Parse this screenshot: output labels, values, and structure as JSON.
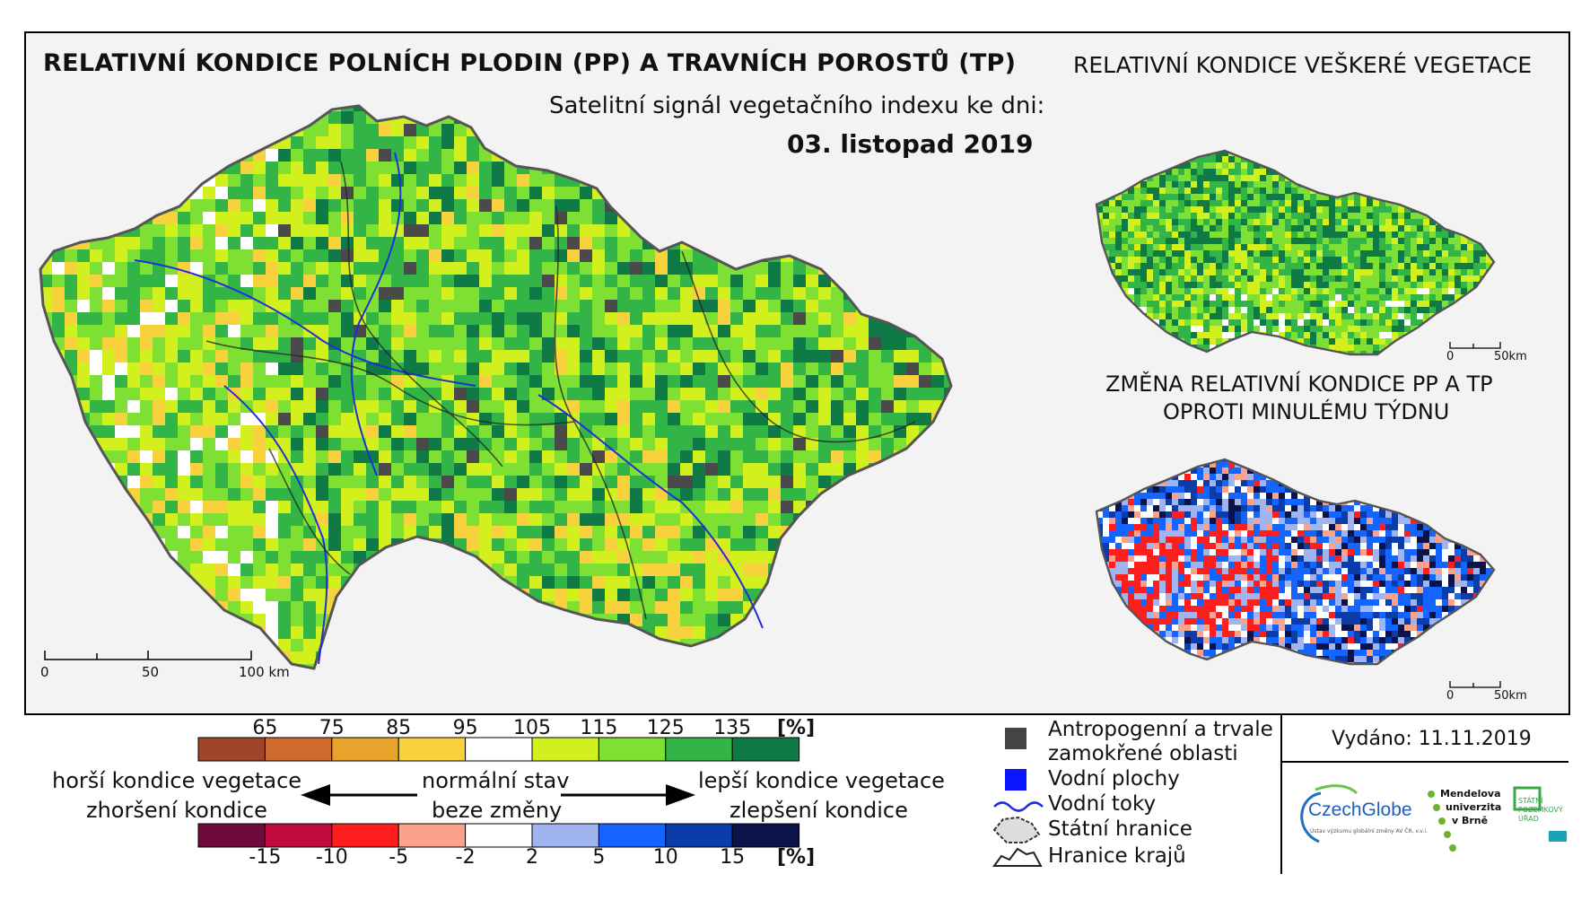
{
  "main_title": "RELATIVNÍ KONDICE POLNÍCH PLODIN (PP) A TRAVNÍCH POROSTŮ (TP)",
  "subtitle": "Satelitní signál vegetačního indexu ke dni:",
  "date": "03. listopad 2019",
  "inset_vegetation": {
    "title": "RELATIVNÍ KONDICE VEŠKERÉ VEGETACE",
    "scale": {
      "start": "0",
      "end": "50km"
    }
  },
  "inset_change": {
    "title_line1": "ZMĚNA RELATIVNÍ KONDICE PP A TP",
    "title_line2": "OPROTI MINULÉMU TÝDNU",
    "scale": {
      "start": "0",
      "end": "50km"
    }
  },
  "main_scale": {
    "labels": [
      "0",
      "50",
      "100 km"
    ]
  },
  "condition_legend": {
    "ticks": [
      "65",
      "75",
      "85",
      "95",
      "105",
      "115",
      "125",
      "135"
    ],
    "unit": "[%]",
    "colors": [
      "#a0442a",
      "#cf6b2c",
      "#e8a42a",
      "#f8d23c",
      "#ffffff",
      "#d2f01e",
      "#7ee032",
      "#32b446",
      "#0f7a46"
    ]
  },
  "change_legend": {
    "ticks": [
      "-15",
      "-10",
      "-5",
      "-2",
      "2",
      "5",
      "10",
      "15"
    ],
    "unit": "[%]",
    "colors": [
      "#6e0a3c",
      "#be0a3c",
      "#ff1e1e",
      "#fca28a",
      "#ffffff",
      "#a0b4f0",
      "#1464ff",
      "#0a3caa",
      "#0a144b"
    ]
  },
  "descriptions": {
    "worse_line1": "horší kondice vegetace",
    "worse_line2": "zhoršení kondice",
    "normal_line1": "normální stav",
    "normal_line2": "beze změny",
    "better_line1": "lepší kondice vegetace",
    "better_line2": "zlepšení kondice"
  },
  "map_key": {
    "anthropogenic_line1": "Antropogenní a trvale",
    "anthropogenic_line2": "zamokřené oblasti",
    "water": "Vodní plochy",
    "streams": "Vodní toky",
    "border": "Státní hranice",
    "regions": "Hranice krajů"
  },
  "issued": "Vydáno: 11.11.2019",
  "logos": {
    "czechglobe": "CzechGlobe",
    "czechglobe_sub": "Ústav výzkumu globální změny AV ČR, v.v.i.",
    "mendel_1": "Mendelova",
    "mendel_2": "univerzita",
    "mendel_3": "v Brně",
    "spu_1": "STÁTNÍ",
    "spu_2": "POZEMKOVÝ",
    "spu_3": "ÚŘAD"
  }
}
